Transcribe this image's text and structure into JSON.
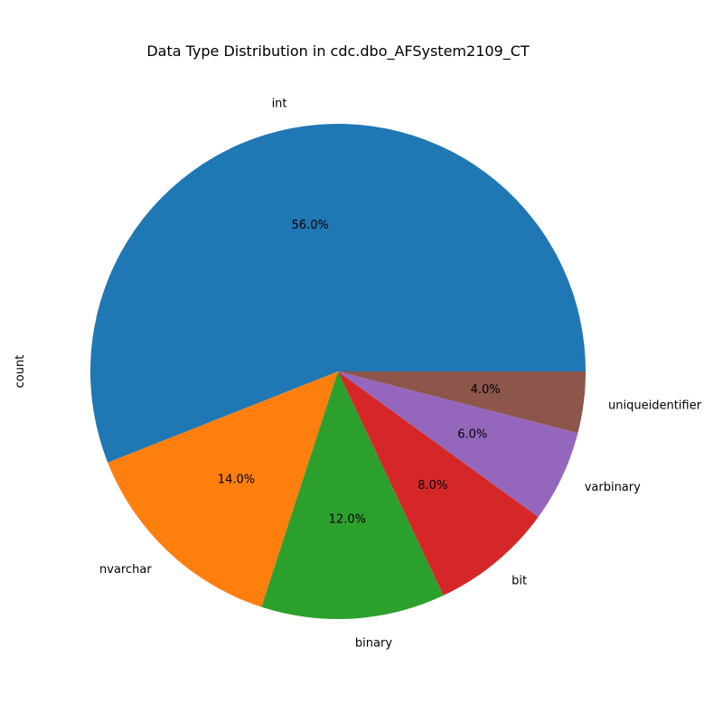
{
  "chart_data": {
    "type": "pie",
    "title": "Data Type Distribution in cdc.dbo_AFSystem2109_CT",
    "ylabel": "count",
    "start_angle_deg": 0,
    "direction": "counterclockwise",
    "slices": [
      {
        "label": "int",
        "percent": 56.0,
        "percent_label": "56.0%",
        "color": "#1f77b4"
      },
      {
        "label": "nvarchar",
        "percent": 14.0,
        "percent_label": "14.0%",
        "color": "#ff7f0e"
      },
      {
        "label": "binary",
        "percent": 12.0,
        "percent_label": "12.0%",
        "color": "#2ca02c"
      },
      {
        "label": "bit",
        "percent": 8.0,
        "percent_label": "8.0%",
        "color": "#d62728"
      },
      {
        "label": "varbinary",
        "percent": 6.0,
        "percent_label": "6.0%",
        "color": "#9467bd"
      },
      {
        "label": "uniqueidentifier",
        "percent": 4.0,
        "percent_label": "4.0%",
        "color": "#8c564b"
      }
    ]
  }
}
